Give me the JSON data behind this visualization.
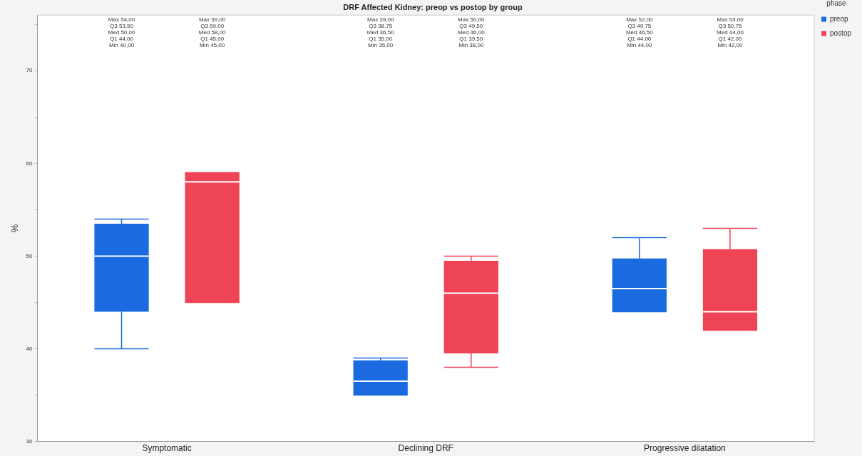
{
  "chart_data": {
    "type": "box",
    "title": "DRF Affected Kidney: preop vs postop by group",
    "ylabel": "%",
    "legend_title": "phase",
    "categories": [
      "Symptomatic",
      "Declining DRF",
      "Progressive dilatation"
    ],
    "series": [
      {
        "name": "preop",
        "color": "#1a6be0",
        "boxes": [
          {
            "low": 40,
            "q1": 44,
            "median": 50,
            "q3": 53.5,
            "high": 54
          },
          {
            "low": 35,
            "q1": 35,
            "median": 36.5,
            "q3": 38.75,
            "high": 39
          },
          {
            "low": 44,
            "q1": 44,
            "median": 46.5,
            "q3": 49.75,
            "high": 52
          }
        ]
      },
      {
        "name": "postop",
        "color": "#ee4455",
        "boxes": [
          {
            "low": 45,
            "q1": 45,
            "median": 58,
            "q3": 59,
            "high": 59
          },
          {
            "low": 38,
            "q1": 39.5,
            "median": 46,
            "q3": 49.5,
            "high": 50
          },
          {
            "low": 42,
            "q1": 42,
            "median": 44,
            "q3": 50.75,
            "high": 53
          }
        ]
      }
    ],
    "annotations": [
      "Max 54,00\nQ3 53,50\nMed 50,00\nQ1 44,00\nMin 40,00",
      "Max 59,00\nQ3 59,00\nMed 58,00\nQ1 45,00\nMin 45,00",
      "Max 39,00\nQ3 38,75\nMed 36,50\nQ1 35,00\nMin 35,00",
      "Max 50,00\nQ3 49,50\nMed 46,00\nQ1 39,50\nMin 38,00",
      "Max 52,00\nQ3 49,75\nMed 46,50\nQ1 44,00\nMin 44,00",
      "Max 53,00\nQ3 50,75\nMed 44,00\nQ1 42,00\nMin 42,00"
    ],
    "ylim": [
      30,
      76
    ],
    "yticks": [
      30,
      {
        "value": 35,
        "label": null
      },
      40,
      {
        "value": 45,
        "label": null
      },
      50,
      {
        "value": 55,
        "label": null
      },
      60,
      {
        "value": 65,
        "label": null
      },
      70,
      {
        "value": 75,
        "label": null
      }
    ],
    "grid": false,
    "legend": "top right"
  }
}
